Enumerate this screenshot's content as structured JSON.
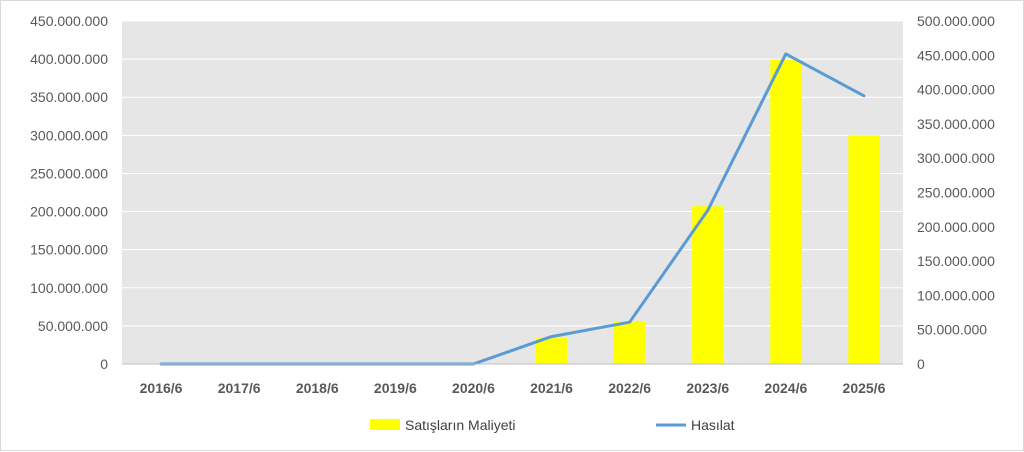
{
  "chart_data": {
    "type": "bar",
    "categories": [
      "2016/6",
      "2017/6",
      "2018/6",
      "2019/6",
      "2020/6",
      "2021/6",
      "2022/6",
      "2023/6",
      "2024/6",
      "2025/6"
    ],
    "series": [
      {
        "name": "Satışların Maliyeti",
        "type": "bar",
        "axis": "left",
        "color": "#ffff00",
        "values": [
          0,
          0,
          0,
          0,
          0,
          34000000,
          56000000,
          207000000,
          399000000,
          300000000
        ]
      },
      {
        "name": "Hasılat",
        "type": "line",
        "axis": "right",
        "color": "#5b9bd5",
        "values": [
          0,
          0,
          0,
          0,
          0,
          40000000,
          61000000,
          224000000,
          452000000,
          391000000
        ]
      }
    ],
    "ylim_left": [
      0,
      450000000
    ],
    "ylim_right": [
      0,
      500000000
    ],
    "yticks_left": [
      "0",
      "50.000.000",
      "100.000.000",
      "150.000.000",
      "200.000.000",
      "250.000.000",
      "300.000.000",
      "350.000.000",
      "400.000.000",
      "450.000.000"
    ],
    "yticks_right": [
      "0",
      "50.000.000",
      "100.000.000",
      "150.000.000",
      "200.000.000",
      "250.000.000",
      "300.000.000",
      "350.000.000",
      "400.000.000",
      "450.000.000",
      "500.000.000"
    ],
    "plot_background": "#e7e6e6",
    "gridlines": true,
    "legend_position": "bottom"
  }
}
